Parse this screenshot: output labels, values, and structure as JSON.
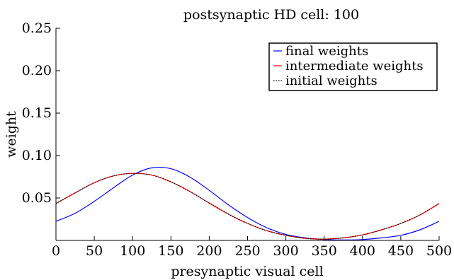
{
  "chart_data": {
    "type": "line",
    "title": "postsynaptic HD cell: 100",
    "xlabel": "presynaptic visual cell",
    "ylabel": "weight",
    "xlim": [
      0,
      500
    ],
    "ylim": [
      0,
      0.25
    ],
    "x_ticks": [
      "0",
      "50",
      "100",
      "150",
      "200",
      "250",
      "300",
      "350",
      "400",
      "450",
      "500"
    ],
    "y_ticks": [
      "0.05",
      "0.10",
      "0.15",
      "0.20",
      "0.25"
    ],
    "grid": false,
    "legend_position": "top-right",
    "x": [
      0,
      25,
      50,
      75,
      100,
      125,
      150,
      175,
      200,
      225,
      250,
      275,
      300,
      325,
      350,
      375,
      400,
      425,
      450,
      475,
      500
    ],
    "series": [
      {
        "name": "final weights",
        "color": "#0000ff",
        "dash": "solid",
        "values": [
          0.0225,
          0.032,
          0.046,
          0.062,
          0.077,
          0.0855,
          0.0845,
          0.0745,
          0.059,
          0.042,
          0.027,
          0.015,
          0.007,
          0.003,
          0.001,
          0.0005,
          0.001,
          0.003,
          0.006,
          0.0125,
          0.0225
        ]
      },
      {
        "name": "intermediate weights",
        "color": "#ff0000",
        "dash": "solid",
        "values": [
          0.0435,
          0.056,
          0.068,
          0.076,
          0.079,
          0.077,
          0.069,
          0.0575,
          0.044,
          0.031,
          0.02,
          0.0115,
          0.006,
          0.0025,
          0.0015,
          0.003,
          0.0065,
          0.0125,
          0.02,
          0.03,
          0.0435
        ]
      },
      {
        "name": "initial weights",
        "color": "#000000",
        "dash": "dotted",
        "values": [
          0.0435,
          0.056,
          0.068,
          0.076,
          0.079,
          0.077,
          0.069,
          0.0575,
          0.044,
          0.031,
          0.02,
          0.0115,
          0.006,
          0.0025,
          0.0015,
          0.003,
          0.0065,
          0.0125,
          0.02,
          0.03,
          0.0435
        ]
      }
    ]
  }
}
